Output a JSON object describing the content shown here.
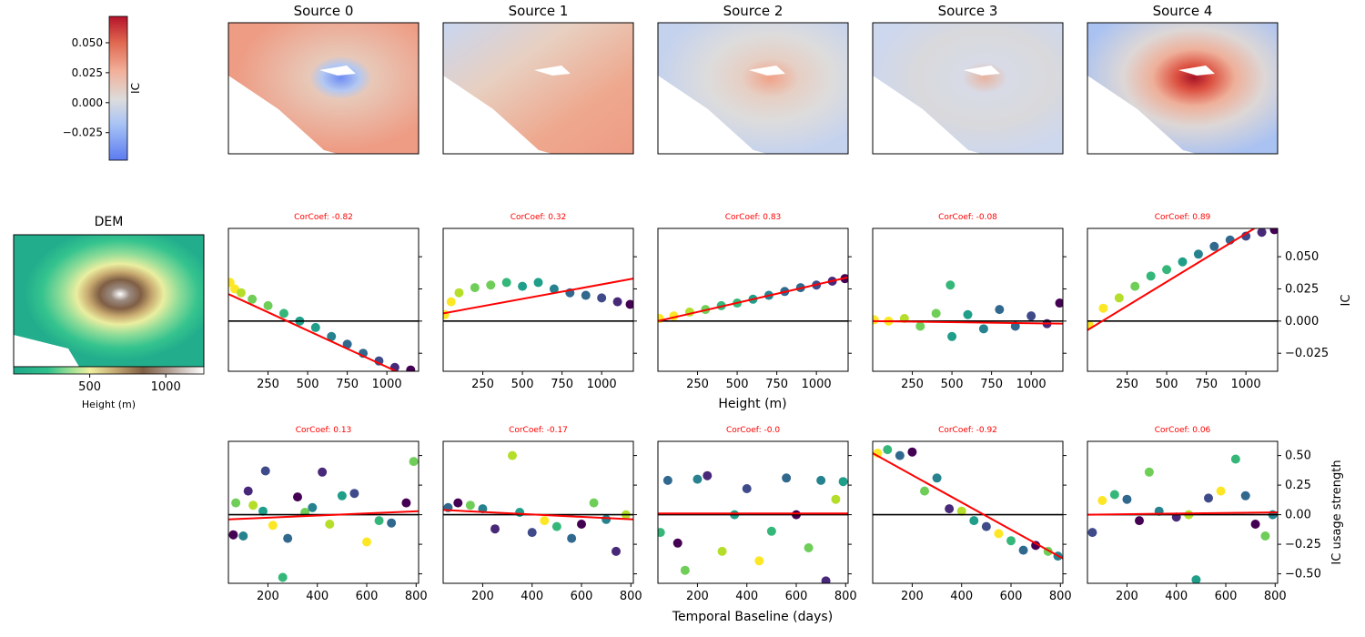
{
  "colorbar": {
    "label": "IC",
    "ticks": [
      "0.050",
      "0.025",
      "0.000",
      "−0.025"
    ],
    "tick_values": [
      0.05,
      0.025,
      0.0,
      -0.025
    ],
    "range": [
      -0.048,
      0.072
    ]
  },
  "dem": {
    "title": "DEM",
    "xlabel": "Height (m)",
    "ticks": [
      "500",
      "1000"
    ],
    "tick_values": [
      500,
      1000
    ],
    "range": [
      0,
      1250
    ]
  },
  "sources": [
    {
      "title": "Source 0",
      "height_corcoef": "CorCoef: -0.82",
      "temporal_corcoef": "CorCoef: 0.13"
    },
    {
      "title": "Source 1",
      "height_corcoef": "CorCoef: 0.32",
      "temporal_corcoef": "CorCoef: -0.17"
    },
    {
      "title": "Source 2",
      "height_corcoef": "CorCoef: 0.83",
      "temporal_corcoef": "CorCoef: -0.0"
    },
    {
      "title": "Source 3",
      "height_corcoef": "CorCoef: -0.08",
      "temporal_corcoef": "CorCoef: -0.92"
    },
    {
      "title": "Source 4",
      "height_corcoef": "CorCoef: 0.89",
      "temporal_corcoef": "CorCoef: 0.06"
    }
  ],
  "height_row": {
    "xlabel": "Height (m)",
    "ylabel": "IC",
    "xticks": [
      "250",
      "500",
      "750",
      "1000"
    ],
    "xtick_values": [
      250,
      500,
      750,
      1000
    ],
    "xlim": [
      0,
      1200
    ],
    "yticks": [
      "0.050",
      "0.025",
      "0.000",
      "−0.025"
    ],
    "ytick_values": [
      0.05,
      0.025,
      0.0,
      -0.025
    ],
    "ylim": [
      -0.039,
      0.072
    ]
  },
  "temporal_row": {
    "xlabel": "Temporal Baseline (days)",
    "ylabel": "IC usage strength",
    "xticks": [
      "200",
      "400",
      "600",
      "800"
    ],
    "xtick_values": [
      200,
      400,
      600,
      800
    ],
    "xlim": [
      40,
      810
    ],
    "yticks": [
      "0.50",
      "0.25",
      "0.00",
      "−0.25",
      "−0.50"
    ],
    "ytick_values": [
      0.5,
      0.25,
      0.0,
      -0.25,
      -0.5
    ],
    "ylim": [
      -0.58,
      0.62
    ]
  },
  "colors": {
    "regression_line": "#ff0000",
    "zero_line": "#000000",
    "corcoef_text": "#ff0000"
  },
  "chart_data": [
    {
      "type": "scatter",
      "panel": "IC vs Height (m)",
      "xlabel": "Height (m)",
      "ylabel": "IC",
      "xlim": [
        0,
        1200
      ],
      "ylim": [
        -0.039,
        0.072
      ],
      "series": [
        {
          "name": "Source 0",
          "fit": [
            [
              0,
              0.021
            ],
            [
              1200,
              -0.047
            ]
          ],
          "points": [
            [
              10,
              0.03
            ],
            [
              40,
              0.025
            ],
            [
              80,
              0.022
            ],
            [
              150,
              0.017
            ],
            [
              250,
              0.012
            ],
            [
              350,
              0.006
            ],
            [
              450,
              0.0
            ],
            [
              550,
              -0.005
            ],
            [
              650,
              -0.012
            ],
            [
              750,
              -0.018
            ],
            [
              850,
              -0.025
            ],
            [
              950,
              -0.031
            ],
            [
              1050,
              -0.036
            ],
            [
              1150,
              -0.038
            ]
          ]
        },
        {
          "name": "Source 1",
          "fit": [
            [
              0,
              0.006
            ],
            [
              1200,
              0.033
            ]
          ],
          "points": [
            [
              10,
              0.005
            ],
            [
              50,
              0.015
            ],
            [
              100,
              0.022
            ],
            [
              200,
              0.026
            ],
            [
              300,
              0.028
            ],
            [
              400,
              0.03
            ],
            [
              500,
              0.027
            ],
            [
              600,
              0.03
            ],
            [
              700,
              0.025
            ],
            [
              800,
              0.022
            ],
            [
              900,
              0.02
            ],
            [
              1000,
              0.018
            ],
            [
              1100,
              0.015
            ],
            [
              1180,
              0.013
            ]
          ]
        },
        {
          "name": "Source 2",
          "fit": [
            [
              0,
              0.0
            ],
            [
              1200,
              0.034
            ]
          ],
          "points": [
            [
              10,
              0.002
            ],
            [
              100,
              0.004
            ],
            [
              200,
              0.007
            ],
            [
              300,
              0.009
            ],
            [
              400,
              0.012
            ],
            [
              500,
              0.014
            ],
            [
              600,
              0.017
            ],
            [
              700,
              0.02
            ],
            [
              800,
              0.023
            ],
            [
              900,
              0.026
            ],
            [
              1000,
              0.028
            ],
            [
              1100,
              0.031
            ],
            [
              1180,
              0.033
            ]
          ]
        },
        {
          "name": "Source 3",
          "fit": [
            [
              0,
              0.0
            ],
            [
              1200,
              -0.002
            ]
          ],
          "points": [
            [
              10,
              0.001
            ],
            [
              100,
              0.0
            ],
            [
              200,
              0.002
            ],
            [
              300,
              -0.004
            ],
            [
              400,
              0.006
            ],
            [
              490,
              0.028
            ],
            [
              500,
              -0.012
            ],
            [
              600,
              0.005
            ],
            [
              700,
              -0.006
            ],
            [
              800,
              0.009
            ],
            [
              900,
              -0.004
            ],
            [
              1000,
              0.004
            ],
            [
              1100,
              -0.002
            ],
            [
              1180,
              0.014
            ]
          ]
        },
        {
          "name": "Source 4",
          "fit": [
            [
              0,
              -0.007
            ],
            [
              1200,
              0.083
            ]
          ],
          "points": [
            [
              10,
              -0.003
            ],
            [
              100,
              0.01
            ],
            [
              200,
              0.018
            ],
            [
              300,
              0.027
            ],
            [
              400,
              0.035
            ],
            [
              500,
              0.04
            ],
            [
              600,
              0.046
            ],
            [
              700,
              0.052
            ],
            [
              800,
              0.058
            ],
            [
              900,
              0.063
            ],
            [
              1000,
              0.066
            ],
            [
              1100,
              0.069
            ],
            [
              1180,
              0.071
            ]
          ]
        }
      ]
    },
    {
      "type": "scatter",
      "panel": "IC usage strength vs Temporal Baseline (days)",
      "xlabel": "Temporal Baseline (days)",
      "ylabel": "IC usage strength",
      "xlim": [
        40,
        810
      ],
      "ylim": [
        -0.58,
        0.62
      ],
      "series": [
        {
          "name": "Source 0",
          "fit": [
            [
              40,
              -0.04
            ],
            [
              810,
              0.03
            ]
          ],
          "points": [
            [
              60,
              -0.17
            ],
            [
              70,
              0.1
            ],
            [
              100,
              -0.18
            ],
            [
              120,
              0.2
            ],
            [
              140,
              0.08
            ],
            [
              180,
              0.03
            ],
            [
              190,
              0.37
            ],
            [
              220,
              -0.09
            ],
            [
              260,
              -0.53
            ],
            [
              280,
              -0.2
            ],
            [
              320,
              0.15
            ],
            [
              350,
              0.02
            ],
            [
              380,
              0.06
            ],
            [
              420,
              0.36
            ],
            [
              450,
              -0.08
            ],
            [
              500,
              0.16
            ],
            [
              550,
              0.18
            ],
            [
              600,
              -0.23
            ],
            [
              650,
              -0.05
            ],
            [
              700,
              -0.07
            ],
            [
              760,
              0.1
            ],
            [
              790,
              0.45
            ]
          ]
        },
        {
          "name": "Source 1",
          "fit": [
            [
              40,
              0.04
            ],
            [
              810,
              -0.04
            ]
          ],
          "points": [
            [
              60,
              0.06
            ],
            [
              100,
              0.1
            ],
            [
              150,
              0.08
            ],
            [
              200,
              0.05
            ],
            [
              250,
              -0.12
            ],
            [
              320,
              0.5
            ],
            [
              350,
              0.02
            ],
            [
              400,
              -0.15
            ],
            [
              450,
              -0.05
            ],
            [
              500,
              -0.1
            ],
            [
              560,
              -0.2
            ],
            [
              600,
              -0.08
            ],
            [
              650,
              0.1
            ],
            [
              700,
              -0.04
            ],
            [
              740,
              -0.31
            ],
            [
              780,
              0.0
            ]
          ]
        },
        {
          "name": "Source 2",
          "fit": [
            [
              40,
              0.01
            ],
            [
              810,
              0.01
            ]
          ],
          "points": [
            [
              50,
              -0.15
            ],
            [
              80,
              0.29
            ],
            [
              120,
              -0.24
            ],
            [
              150,
              -0.47
            ],
            [
              200,
              0.3
            ],
            [
              240,
              0.33
            ],
            [
              300,
              -0.31
            ],
            [
              350,
              0.0
            ],
            [
              400,
              0.22
            ],
            [
              450,
              -0.39
            ],
            [
              500,
              -0.14
            ],
            [
              560,
              0.31
            ],
            [
              600,
              0.0
            ],
            [
              650,
              -0.28
            ],
            [
              700,
              0.29
            ],
            [
              720,
              -0.56
            ],
            [
              760,
              0.13
            ],
            [
              790,
              0.28
            ]
          ]
        },
        {
          "name": "Source 3",
          "fit": [
            [
              40,
              0.52
            ],
            [
              810,
              -0.37
            ]
          ],
          "points": [
            [
              60,
              0.52
            ],
            [
              100,
              0.55
            ],
            [
              150,
              0.5
            ],
            [
              200,
              0.53
            ],
            [
              250,
              0.2
            ],
            [
              300,
              0.31
            ],
            [
              350,
              0.05
            ],
            [
              400,
              0.03
            ],
            [
              450,
              -0.05
            ],
            [
              500,
              -0.1
            ],
            [
              550,
              -0.16
            ],
            [
              600,
              -0.22
            ],
            [
              650,
              -0.3
            ],
            [
              700,
              -0.26
            ],
            [
              750,
              -0.31
            ],
            [
              790,
              -0.35
            ]
          ]
        },
        {
          "name": "Source 4",
          "fit": [
            [
              40,
              0.0
            ],
            [
              810,
              0.02
            ]
          ],
          "points": [
            [
              60,
              -0.15
            ],
            [
              100,
              0.12
            ],
            [
              150,
              0.17
            ],
            [
              200,
              0.13
            ],
            [
              250,
              -0.05
            ],
            [
              290,
              0.36
            ],
            [
              330,
              0.03
            ],
            [
              400,
              -0.02
            ],
            [
              450,
              0.0
            ],
            [
              480,
              -0.55
            ],
            [
              530,
              0.14
            ],
            [
              580,
              0.2
            ],
            [
              640,
              0.47
            ],
            [
              680,
              0.16
            ],
            [
              720,
              -0.08
            ],
            [
              760,
              -0.18
            ],
            [
              790,
              0.0
            ]
          ]
        }
      ]
    }
  ]
}
